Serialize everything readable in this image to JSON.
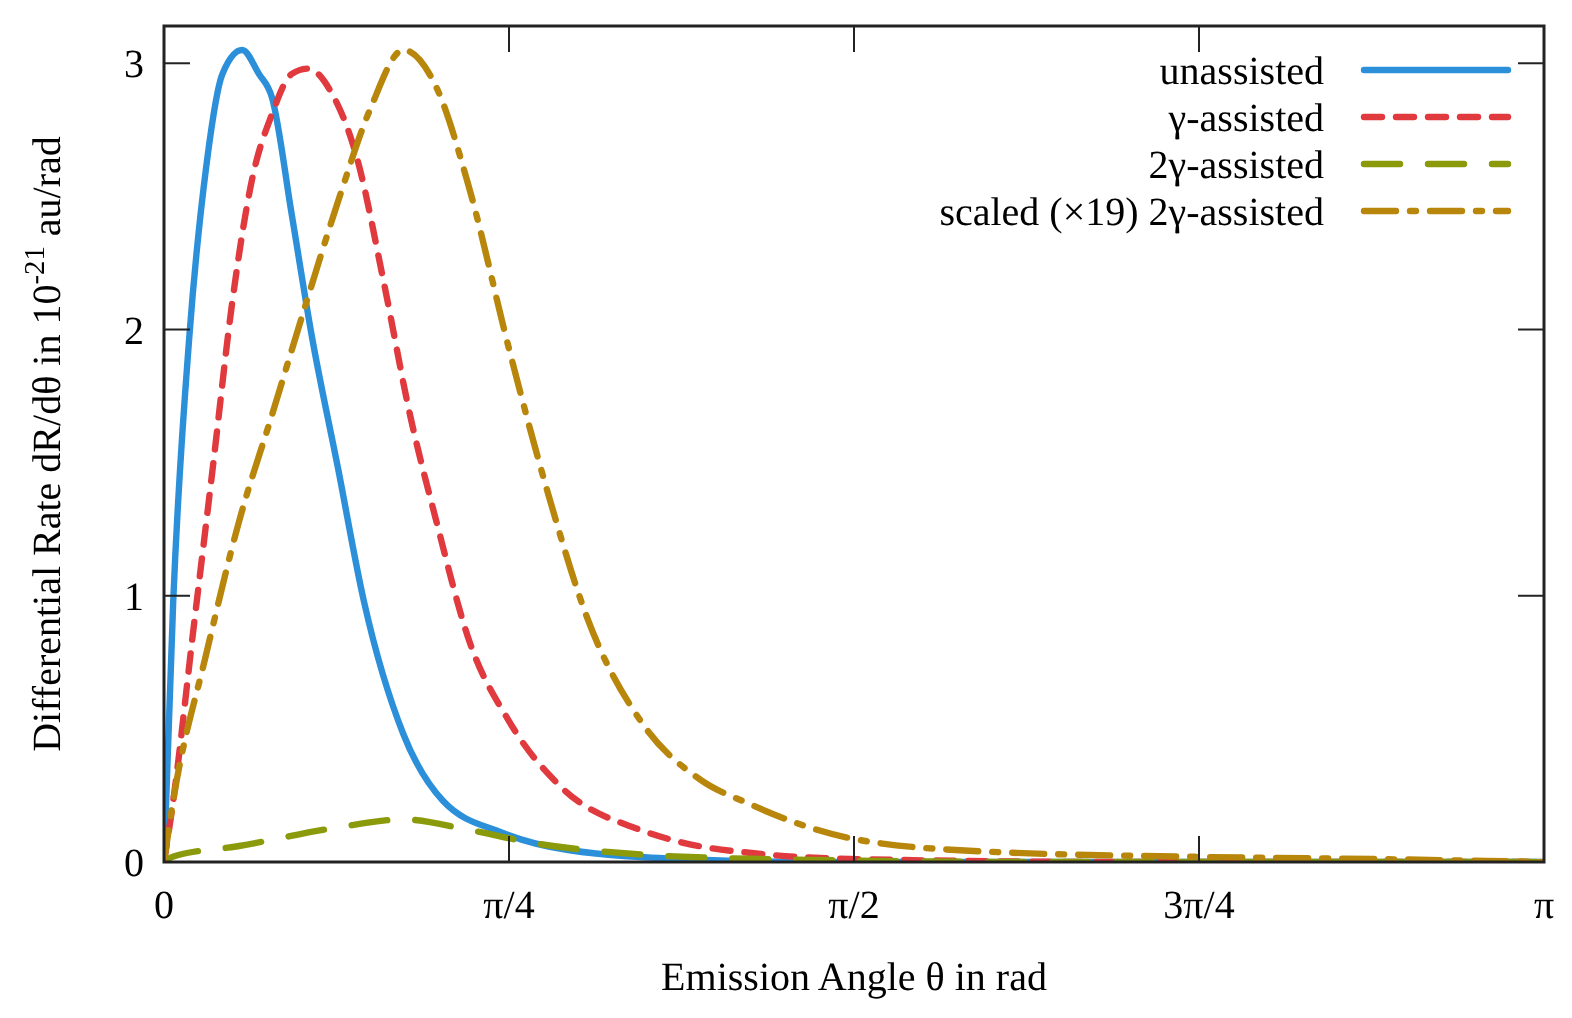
{
  "chart_data": {
    "type": "line",
    "xlabel": "Emission Angle θ in rad",
    "ylabel": "Differential Rate dR/dθ in 10$^{-21}$ au/rad",
    "xlim": [
      0,
      3.1416
    ],
    "ylim": [
      0,
      3.14
    ],
    "xticks": [
      {
        "value": 0,
        "label": "0"
      },
      {
        "value": 0.7854,
        "label": "π/4"
      },
      {
        "value": 1.5708,
        "label": "π/2"
      },
      {
        "value": 2.3562,
        "label": "3π/4"
      },
      {
        "value": 3.1416,
        "label": "π"
      }
    ],
    "yticks": [
      0,
      1,
      2,
      3
    ],
    "grid": false,
    "legend": "top right",
    "series": [
      {
        "name": "unassisted",
        "color": "#2b90d9",
        "line_style": "solid",
        "x": [
          0,
          0.021,
          0.058,
          0.096,
          0.133,
          0.178,
          0.216,
          0.246,
          0.291,
          0.336,
          0.396,
          0.455,
          0.545,
          0.635,
          0.77,
          0.92,
          1.2,
          1.5,
          2,
          2.5,
          3.1416
        ],
        "values": [
          0,
          0.98,
          1.98,
          2.61,
          2.96,
          3.05,
          2.96,
          2.87,
          2.43,
          1.98,
          1.48,
          0.98,
          0.48,
          0.23,
          0.11,
          0.045,
          0.01,
          0,
          0,
          0,
          0
        ]
      },
      {
        "name": "γ-assisted",
        "color": "#e0393e",
        "line_style": "dashed",
        "x": [
          0,
          0.021,
          0.066,
          0.111,
          0.156,
          0.2,
          0.246,
          0.291,
          0.328,
          0.381,
          0.44,
          0.5,
          0.56,
          0.62,
          0.695,
          0.785,
          0.905,
          1.085,
          1.163,
          1.36,
          1.6,
          2.2,
          3.1416
        ],
        "values": [
          0,
          0.23,
          0.86,
          1.48,
          2.11,
          2.56,
          2.81,
          2.96,
          2.98,
          2.89,
          2.64,
          2.18,
          1.68,
          1.28,
          0.83,
          0.53,
          0.28,
          0.12,
          0.08,
          0.03,
          0.01,
          0,
          0
        ]
      },
      {
        "name": "2γ-assisted",
        "color": "#8a9a0b",
        "line_style": "longdash",
        "x": [
          0,
          0.02,
          0.171,
          0.396,
          0.545,
          0.695,
          0.845,
          1.07,
          1.4,
          2,
          3.1416
        ],
        "values": [
          0,
          0.02,
          0.06,
          0.13,
          0.16,
          0.12,
          0.07,
          0.03,
          0.01,
          0,
          0
        ]
      },
      {
        "name": "scaled (×19) 2γ-assisted",
        "color": "#b8860b",
        "line_style": "dashdot",
        "x": [
          0,
          0.021,
          0.096,
          0.171,
          0.246,
          0.32,
          0.396,
          0.47,
          0.545,
          0.62,
          0.695,
          0.785,
          0.875,
          0.965,
          1.085,
          1.22,
          1.33,
          1.56,
          1.86,
          2.33,
          2.8,
          3.1416
        ],
        "values": [
          0,
          0.23,
          0.78,
          1.28,
          1.68,
          2.08,
          2.48,
          2.83,
          3.05,
          2.91,
          2.53,
          1.93,
          1.38,
          0.91,
          0.53,
          0.31,
          0.22,
          0.09,
          0.04,
          0.02,
          0.01,
          0
        ]
      }
    ]
  }
}
